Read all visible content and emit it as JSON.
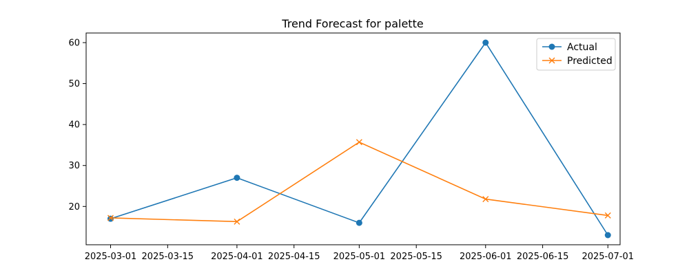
{
  "chart_data": {
    "type": "line",
    "title": "Trend Forecast for palette",
    "xlabel": "",
    "ylabel": "",
    "x_ticks": [
      "2025-03-01",
      "2025-03-15",
      "2025-04-01",
      "2025-04-15",
      "2025-05-01",
      "2025-05-15",
      "2025-06-01",
      "2025-06-15",
      "2025-07-01"
    ],
    "y_ticks": [
      20,
      30,
      40,
      50,
      60
    ],
    "xlim": [
      "2025-02-23",
      "2025-07-04"
    ],
    "ylim": [
      10.65,
      62.35
    ],
    "grid": false,
    "legend_position": "top-right",
    "series": [
      {
        "name": "Actual",
        "color": "#1f77b4",
        "marker": "circle",
        "x": [
          "2025-03-01",
          "2025-04-01",
          "2025-05-01",
          "2025-06-01",
          "2025-07-01"
        ],
        "y": [
          17,
          27,
          16,
          60,
          13
        ]
      },
      {
        "name": "Predicted",
        "color": "#ff7f0e",
        "marker": "x",
        "x": [
          "2025-03-01",
          "2025-04-01",
          "2025-05-01",
          "2025-06-01",
          "2025-07-01"
        ],
        "y": [
          17.2,
          16.3,
          35.7,
          21.8,
          17.8
        ]
      }
    ]
  }
}
